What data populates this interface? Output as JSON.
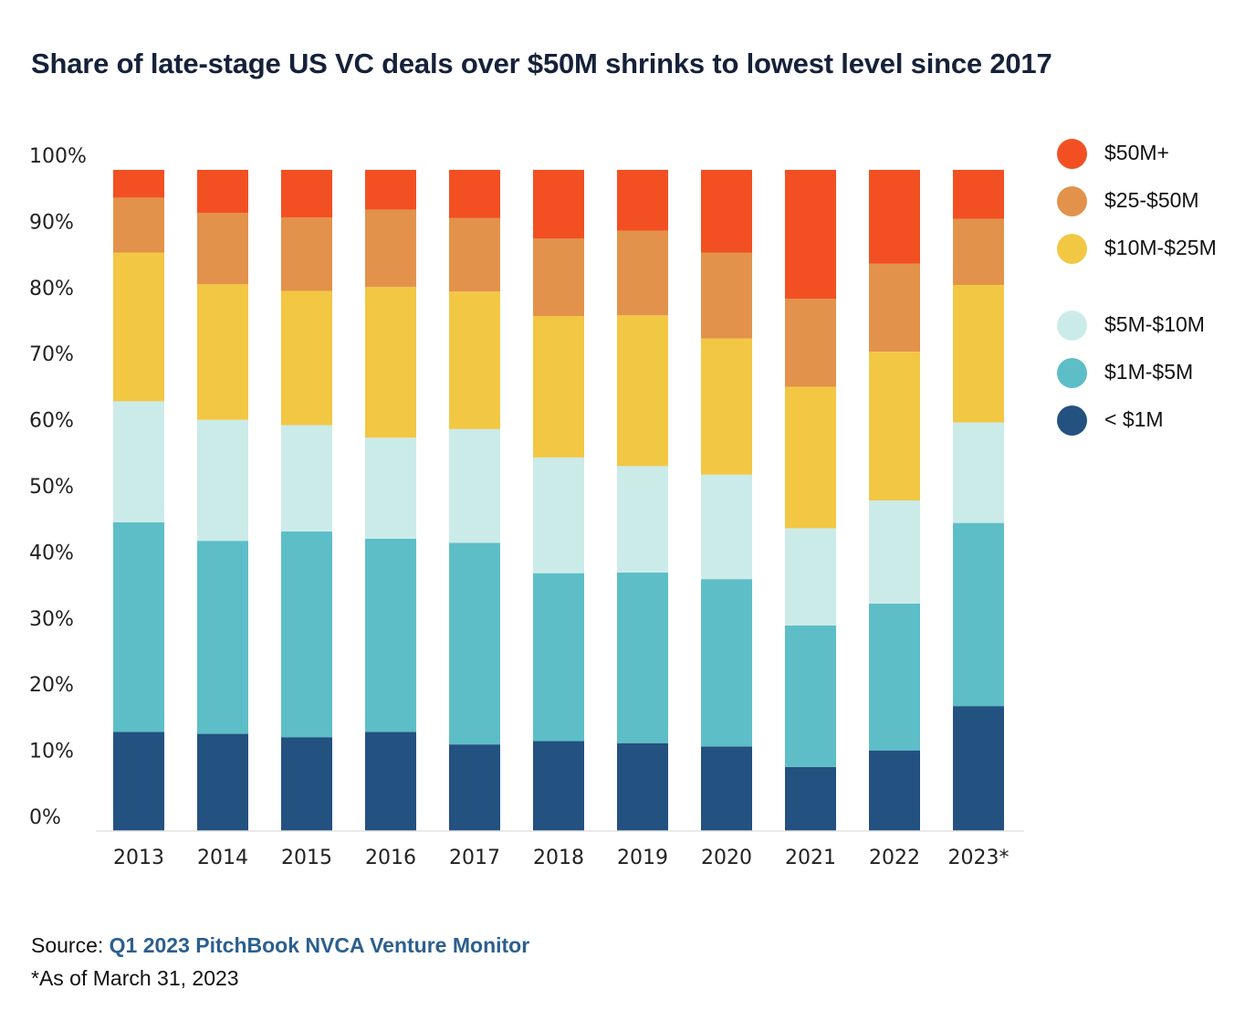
{
  "header": {
    "title": "Share of late-stage US VC deals over $50M shrinks to lowest level since 2017"
  },
  "chart_data": {
    "type": "bar",
    "stacked": true,
    "title": "Share of late-stage US VC deals over $50M shrinks to lowest level since 2017",
    "xlabel": "",
    "ylabel": "",
    "ylim": [
      0,
      100
    ],
    "yticks": [
      "0%",
      "10%",
      "20%",
      "30%",
      "40%",
      "50%",
      "60%",
      "70%",
      "80%",
      "90%",
      "100%"
    ],
    "grid": false,
    "legend_position": "right",
    "categories": [
      "2013",
      "2014",
      "2015",
      "2016",
      "2017",
      "2018",
      "2019",
      "2020",
      "2021",
      "2022",
      "2023*"
    ],
    "series": [
      {
        "name": "< $1M",
        "color": "#235180",
        "values": [
          15.0,
          14.7,
          14.2,
          15.0,
          13.1,
          13.6,
          13.3,
          12.8,
          9.7,
          12.2,
          18.9
        ]
      },
      {
        "name": "$1M-$5M",
        "color": "#5dbec7",
        "values": [
          31.7,
          29.2,
          31.1,
          29.2,
          30.5,
          25.4,
          25.8,
          25.3,
          21.4,
          22.2,
          27.7
        ]
      },
      {
        "name": "$5M-$10M",
        "color": "#cbebe9",
        "values": [
          18.3,
          18.3,
          16.1,
          15.3,
          17.2,
          17.5,
          16.1,
          15.8,
          14.7,
          15.6,
          15.2
        ]
      },
      {
        "name": "$10M-$25M",
        "color": "#f2c744",
        "values": [
          22.5,
          20.5,
          20.3,
          22.8,
          20.8,
          21.4,
          22.8,
          20.6,
          21.4,
          22.5,
          20.8
        ]
      },
      {
        "name": "$25-$50M",
        "color": "#e2924b",
        "values": [
          8.3,
          10.8,
          11.1,
          11.7,
          11.1,
          11.7,
          12.8,
          13.0,
          13.3,
          13.3,
          10.0
        ]
      },
      {
        "name": "$50M+",
        "color": "#f25022",
        "values": [
          4.2,
          6.5,
          7.2,
          6.0,
          7.3,
          10.4,
          9.2,
          12.5,
          19.5,
          14.2,
          7.4
        ]
      }
    ]
  },
  "legend": {
    "items": [
      {
        "label": "$50M+",
        "color": "#f25022"
      },
      {
        "label": "$25-$50M",
        "color": "#e2924b"
      },
      {
        "label": "$10M-$25M",
        "color": "#f2c744"
      },
      {
        "label": "$5M-$10M",
        "color": "#cbebe9"
      },
      {
        "label": "$1M-$5M",
        "color": "#5dbec7"
      },
      {
        "label": "< $1M",
        "color": "#235180"
      }
    ]
  },
  "footer": {
    "source_prefix": "Source: ",
    "source_link": "Q1 2023 PitchBook NVCA Venture Monitor",
    "footnote": "*As of March 31, 2023"
  }
}
